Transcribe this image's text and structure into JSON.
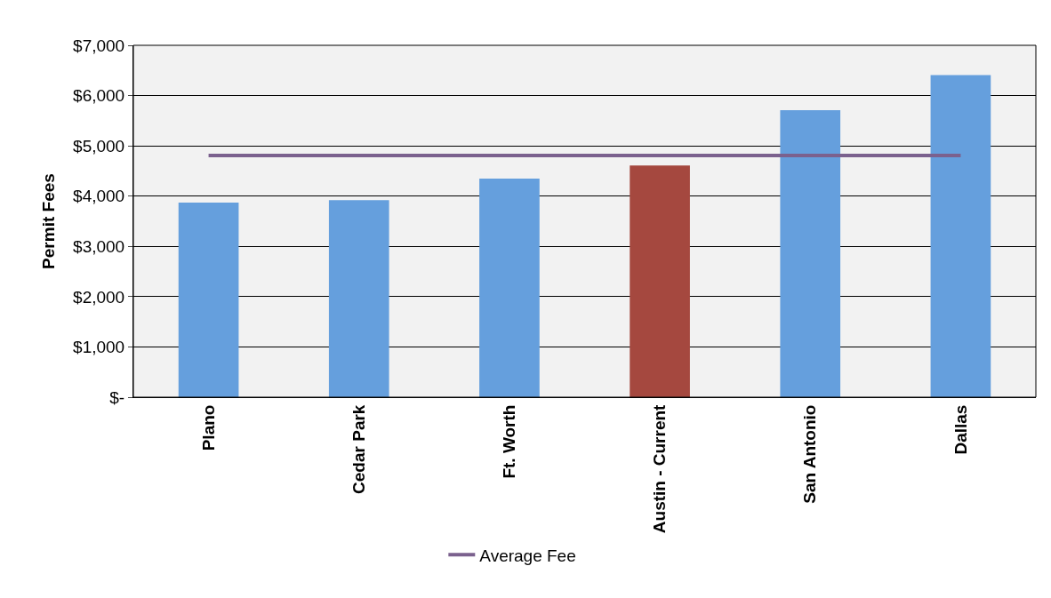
{
  "chart_data": {
    "type": "bar",
    "ylabel": "Permit Fees",
    "categories": [
      "Plano",
      "Cedar Park",
      "Ft. Worth",
      "Austin - Current",
      "San Antonio",
      "Dallas"
    ],
    "series": [
      {
        "colors": [
          "#659fdd",
          "#659fdd",
          "#659fdd",
          "#a5483f",
          "#659fdd",
          "#659fdd"
        ],
        "values": [
          3870,
          3920,
          4350,
          4610,
          5710,
          6410
        ]
      },
      {
        "type": "line",
        "name": "Average Fee",
        "color": "#7b618e",
        "marker": "none",
        "values": [
          4810,
          4810,
          4810,
          4810,
          4810,
          4810
        ]
      }
    ],
    "ylim": [
      0,
      7000
    ],
    "yticks": [
      {
        "value": 0,
        "label": "$-"
      },
      {
        "value": 1000,
        "label": "$1,000"
      },
      {
        "value": 2000,
        "label": "$2,000"
      },
      {
        "value": 3000,
        "label": "$3,000"
      },
      {
        "value": 4000,
        "label": "$4,000"
      },
      {
        "value": 5000,
        "label": "$5,000"
      },
      {
        "value": 6000,
        "label": "$6,000"
      },
      {
        "value": 7000,
        "label": "$7,000"
      }
    ],
    "grid": "y",
    "legend": "bottom"
  }
}
